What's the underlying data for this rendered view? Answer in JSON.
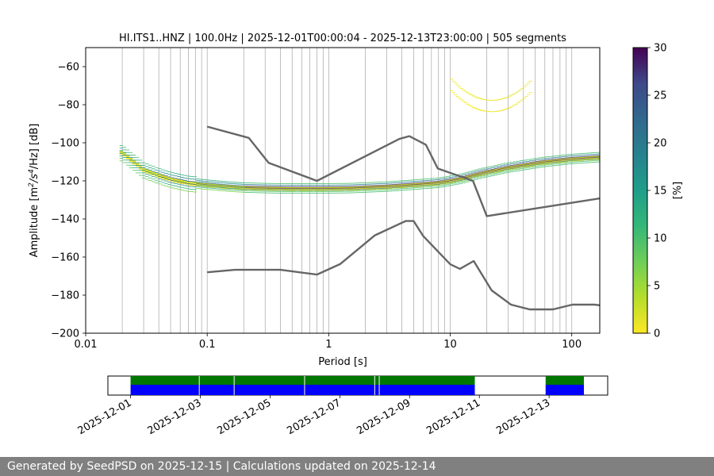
{
  "chart_data": [
    {
      "type": "heatmap",
      "title": "HI.ITS1..HNZ | 100.0Hz | 2025-12-01T00:00:04 - 2025-12-13T23:00:00 | 505 segments",
      "xlabel": "Period [s]",
      "ylabel_parts": {
        "prefix": "Amplitude [m",
        "sup1": "2",
        "mid": "/s",
        "sup2": "4",
        "suffix": "/Hz] [dB]"
      },
      "x_scale": "log",
      "xlim": [
        0.01,
        170
      ],
      "ylim": [
        -200,
        -50
      ],
      "x_ticks": [
        0.01,
        0.1,
        1,
        10,
        100
      ],
      "x_tick_labels": [
        "0.01",
        "0.1",
        "1",
        "10",
        "100"
      ],
      "y_ticks": [
        -200,
        -180,
        -160,
        -140,
        -120,
        -100,
        -80,
        -60
      ],
      "y_tick_labels": [
        "−200",
        "−180",
        "−160",
        "−140",
        "−120",
        "−100",
        "−80",
        "−60"
      ],
      "colorbar": {
        "label": "[%]",
        "range": [
          0,
          30
        ],
        "ticks": [
          0,
          5,
          10,
          15,
          20,
          25,
          30
        ],
        "tick_labels": [
          "0",
          "5",
          "10",
          "15",
          "20",
          "25",
          "30"
        ],
        "colormap": "viridis_r"
      },
      "noise_models": [
        {
          "name": "NHNM",
          "period": [
            0.1,
            0.22,
            0.32,
            0.8,
            3.8,
            4.6,
            6.3,
            7.9,
            15.4,
            20,
            354.8
          ],
          "db": [
            -91.5,
            -97.4,
            -110.5,
            -120,
            -98,
            -96.5,
            -101,
            -113.5,
            -120,
            -138.5,
            -126
          ]
        },
        {
          "name": "NLNM",
          "period": [
            0.1,
            0.17,
            0.4,
            0.8,
            1.24,
            2.4,
            4.3,
            5,
            6,
            10,
            12,
            15.6,
            21.9,
            31.6,
            45,
            70,
            101,
            154,
            328
          ],
          "db": [
            -168,
            -166.7,
            -166.7,
            -169.2,
            -163.7,
            -148.6,
            -141.1,
            -141.1,
            -149,
            -163.8,
            -166.2,
            -162.1,
            -177.5,
            -185,
            -187.5,
            -187.5,
            -185,
            -185,
            -187.5
          ]
        }
      ],
      "mode_curve": {
        "period": [
          0.02,
          0.025,
          0.03,
          0.04,
          0.05,
          0.07,
          0.1,
          0.15,
          0.2,
          0.3,
          0.5,
          0.8,
          1.5,
          3,
          5,
          8,
          12,
          18,
          30,
          60,
          100,
          170
        ],
        "db": [
          -104,
          -109,
          -113,
          -116,
          -118,
          -120,
          -121,
          -122,
          -122.5,
          -122.8,
          -123,
          -123,
          -122.8,
          -122,
          -121,
          -120,
          -118,
          -115,
          -112,
          -109,
          -107.5,
          -106.5
        ]
      },
      "upper_lobe": {
        "period": [
          0.02,
          0.03,
          0.05,
          0.1,
          0.3,
          1,
          3,
          5,
          10,
          20,
          40,
          100,
          170
        ],
        "db": [
          -98,
          -100,
          -108,
          -114,
          -115,
          -116,
          -112,
          -106,
          -106,
          -96,
          -100,
          -106,
          -103
        ]
      },
      "spike_peak": {
        "period": 22,
        "db": -85
      }
    },
    {
      "type": "timeline",
      "x_tick_labels": [
        "2025-12-01",
        "2025-12-03",
        "2025-12-05",
        "2025-12-07",
        "2025-12-09",
        "2025-12-11",
        "2025-12-13"
      ],
      "x_ticks_day": [
        1,
        3,
        5,
        7,
        9,
        11,
        13
      ],
      "xlim_day": [
        0.35,
        14.68
      ],
      "colors": {
        "covered": "#007700",
        "used": "#0000ff"
      },
      "covered_ranges": [
        [
          1.0,
          10.87
        ],
        [
          12.9,
          14.9
        ]
      ],
      "used_ranges": [
        [
          1.0,
          10.87
        ],
        [
          12.9,
          14.9
        ]
      ],
      "gaps": [
        2.97,
        3.97,
        5.99,
        8.0,
        8.13
      ]
    }
  ],
  "footer": {
    "text": "Generated by SeedPSD on 2025-12-15 | Calculations updated on 2025-12-14"
  }
}
